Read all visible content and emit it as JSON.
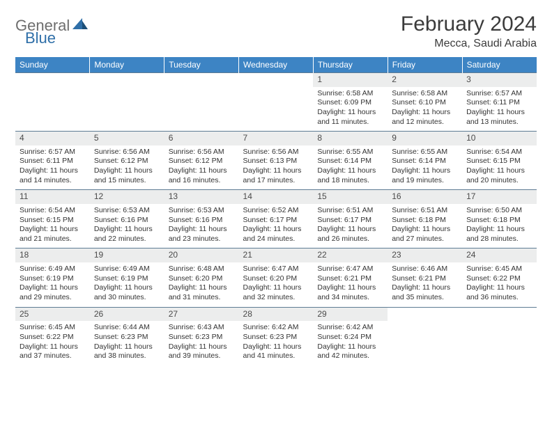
{
  "logo": {
    "general": "General",
    "blue": "Blue"
  },
  "title": "February 2024",
  "location": "Mecca, Saudi Arabia",
  "colors": {
    "header_bg": "#3d84c4",
    "header_text": "#ffffff",
    "daynum_bg": "#eceded",
    "rule": "#5d7b93",
    "logo_gray": "#6e6e6e",
    "logo_blue": "#2f6fa8"
  },
  "dayNames": [
    "Sunday",
    "Monday",
    "Tuesday",
    "Wednesday",
    "Thursday",
    "Friday",
    "Saturday"
  ],
  "weeks": [
    [
      null,
      null,
      null,
      null,
      {
        "n": "1",
        "sr": "6:58 AM",
        "ss": "6:09 PM",
        "dl": "11 hours and 11 minutes."
      },
      {
        "n": "2",
        "sr": "6:58 AM",
        "ss": "6:10 PM",
        "dl": "11 hours and 12 minutes."
      },
      {
        "n": "3",
        "sr": "6:57 AM",
        "ss": "6:11 PM",
        "dl": "11 hours and 13 minutes."
      }
    ],
    [
      {
        "n": "4",
        "sr": "6:57 AM",
        "ss": "6:11 PM",
        "dl": "11 hours and 14 minutes."
      },
      {
        "n": "5",
        "sr": "6:56 AM",
        "ss": "6:12 PM",
        "dl": "11 hours and 15 minutes."
      },
      {
        "n": "6",
        "sr": "6:56 AM",
        "ss": "6:12 PM",
        "dl": "11 hours and 16 minutes."
      },
      {
        "n": "7",
        "sr": "6:56 AM",
        "ss": "6:13 PM",
        "dl": "11 hours and 17 minutes."
      },
      {
        "n": "8",
        "sr": "6:55 AM",
        "ss": "6:14 PM",
        "dl": "11 hours and 18 minutes."
      },
      {
        "n": "9",
        "sr": "6:55 AM",
        "ss": "6:14 PM",
        "dl": "11 hours and 19 minutes."
      },
      {
        "n": "10",
        "sr": "6:54 AM",
        "ss": "6:15 PM",
        "dl": "11 hours and 20 minutes."
      }
    ],
    [
      {
        "n": "11",
        "sr": "6:54 AM",
        "ss": "6:15 PM",
        "dl": "11 hours and 21 minutes."
      },
      {
        "n": "12",
        "sr": "6:53 AM",
        "ss": "6:16 PM",
        "dl": "11 hours and 22 minutes."
      },
      {
        "n": "13",
        "sr": "6:53 AM",
        "ss": "6:16 PM",
        "dl": "11 hours and 23 minutes."
      },
      {
        "n": "14",
        "sr": "6:52 AM",
        "ss": "6:17 PM",
        "dl": "11 hours and 24 minutes."
      },
      {
        "n": "15",
        "sr": "6:51 AM",
        "ss": "6:17 PM",
        "dl": "11 hours and 26 minutes."
      },
      {
        "n": "16",
        "sr": "6:51 AM",
        "ss": "6:18 PM",
        "dl": "11 hours and 27 minutes."
      },
      {
        "n": "17",
        "sr": "6:50 AM",
        "ss": "6:18 PM",
        "dl": "11 hours and 28 minutes."
      }
    ],
    [
      {
        "n": "18",
        "sr": "6:49 AM",
        "ss": "6:19 PM",
        "dl": "11 hours and 29 minutes."
      },
      {
        "n": "19",
        "sr": "6:49 AM",
        "ss": "6:19 PM",
        "dl": "11 hours and 30 minutes."
      },
      {
        "n": "20",
        "sr": "6:48 AM",
        "ss": "6:20 PM",
        "dl": "11 hours and 31 minutes."
      },
      {
        "n": "21",
        "sr": "6:47 AM",
        "ss": "6:20 PM",
        "dl": "11 hours and 32 minutes."
      },
      {
        "n": "22",
        "sr": "6:47 AM",
        "ss": "6:21 PM",
        "dl": "11 hours and 34 minutes."
      },
      {
        "n": "23",
        "sr": "6:46 AM",
        "ss": "6:21 PM",
        "dl": "11 hours and 35 minutes."
      },
      {
        "n": "24",
        "sr": "6:45 AM",
        "ss": "6:22 PM",
        "dl": "11 hours and 36 minutes."
      }
    ],
    [
      {
        "n": "25",
        "sr": "6:45 AM",
        "ss": "6:22 PM",
        "dl": "11 hours and 37 minutes."
      },
      {
        "n": "26",
        "sr": "6:44 AM",
        "ss": "6:23 PM",
        "dl": "11 hours and 38 minutes."
      },
      {
        "n": "27",
        "sr": "6:43 AM",
        "ss": "6:23 PM",
        "dl": "11 hours and 39 minutes."
      },
      {
        "n": "28",
        "sr": "6:42 AM",
        "ss": "6:23 PM",
        "dl": "11 hours and 41 minutes."
      },
      {
        "n": "29",
        "sr": "6:42 AM",
        "ss": "6:24 PM",
        "dl": "11 hours and 42 minutes."
      },
      null,
      null
    ]
  ]
}
